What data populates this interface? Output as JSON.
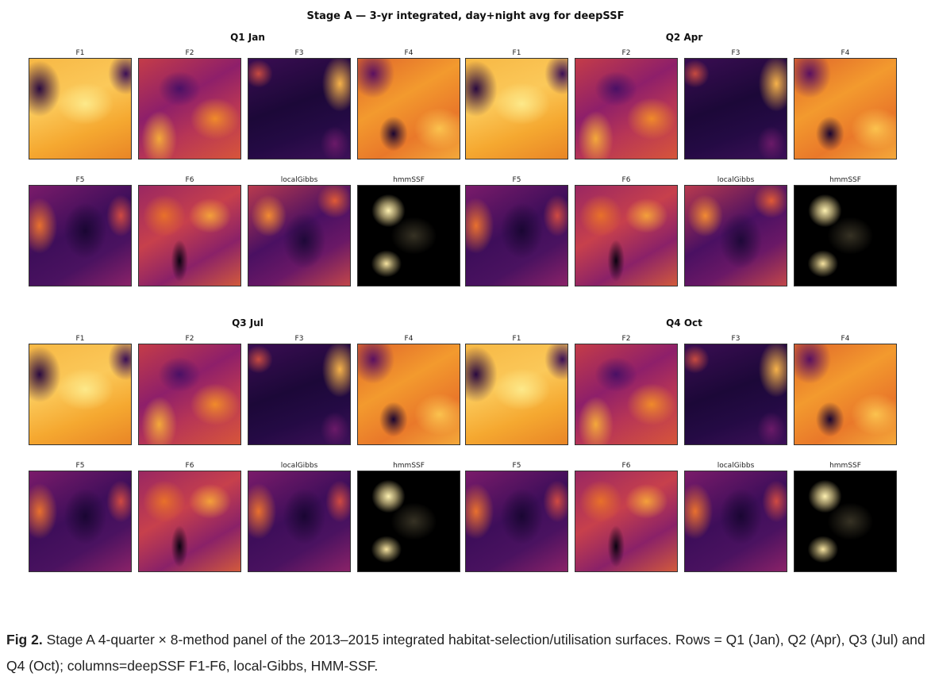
{
  "title": "Stage A — 3-yr integrated, day+night avg for deepSSF",
  "quarters": [
    {
      "title": "Q1 Jan",
      "labels": [
        "F1",
        "F2",
        "F3",
        "F4",
        "F5",
        "F6",
        "localGibbs",
        "hmmSSF"
      ]
    },
    {
      "title": "Q2 Apr",
      "labels": [
        "F1",
        "F2",
        "F3",
        "F4",
        "F5",
        "F6",
        "localGibbs",
        "hmmSSF"
      ]
    },
    {
      "title": "Q3 Jul",
      "labels": [
        "F1",
        "F2",
        "F3",
        "F4",
        "F5",
        "F6",
        "localGibbs",
        "hmmSSF"
      ]
    },
    {
      "title": "Q4 Oct",
      "labels": [
        "F1",
        "F2",
        "F3",
        "F4",
        "F5",
        "F6",
        "localGibbs",
        "hmmSSF"
      ]
    }
  ],
  "caption": {
    "fig_label": "Fig 2.",
    "text": "Stage A 4-quarter × 8-method panel of the 2013–2015 integrated habitat-selection/utilisation surfaces. Rows = Q1 (Jan), Q2 (Apr), Q3 (Jul) and Q4 (Oct); columns=deepSSF F1-F6, local-Gibbs, HMM-SSF."
  },
  "colormap": "inferno",
  "colors": {
    "background": "#ffffff",
    "text": "#111111"
  }
}
